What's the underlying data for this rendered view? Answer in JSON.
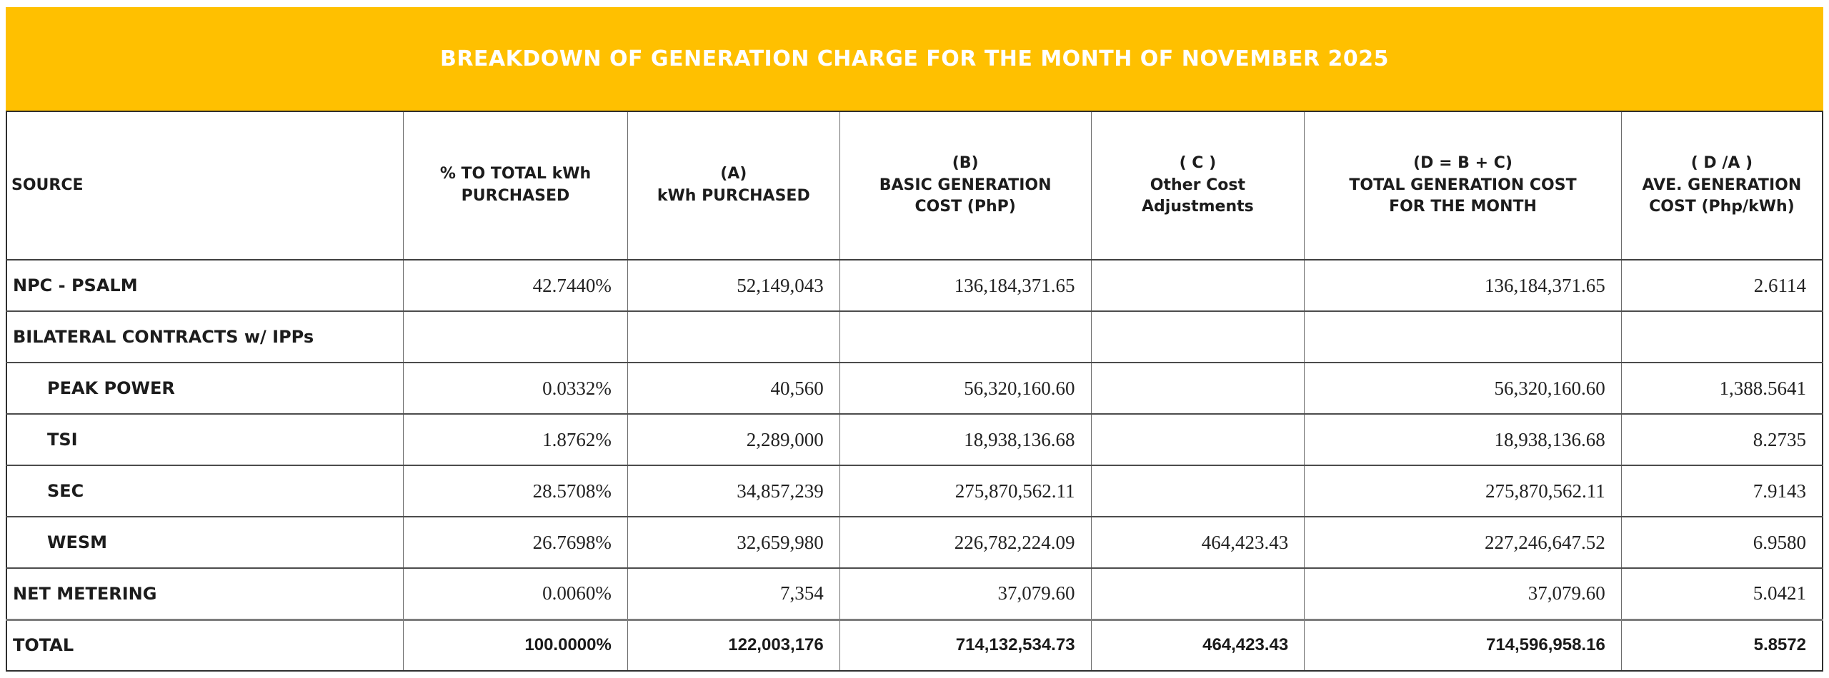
{
  "title": "BREAKDOWN OF GENERATION CHARGE FOR THE MONTH OF NOVEMBER 2025",
  "colors": {
    "banner_background": "#FFC000",
    "banner_text": "#FFFFFF",
    "table_text": "#1C1C1C",
    "border": "#4C4C4C"
  },
  "table": {
    "headers": {
      "source": "SOURCE",
      "pct": "% TO TOTAL kWh\nPURCHASED",
      "kwh": "(A)\nkWh PURCHASED",
      "basic": "(B)\nBASIC GENERATION\nCOST (PhP)",
      "other": "( C )\nOther Cost\nAdjustments",
      "total": "(D = B + C)\nTOTAL GENERATION COST\nFOR THE MONTH",
      "ave": "( D /A )\nAVE. GENERATION\nCOST (Php/kWh)"
    },
    "rows": [
      {
        "source": "NPC - PSALM",
        "pct": "42.7440%",
        "kwh": "52,149,043",
        "basic": "136,184,371.65",
        "other": "",
        "total": "136,184,371.65",
        "ave": "2.6114"
      },
      {
        "source": "BILATERAL CONTRACTS w/ IPPs",
        "pct": "",
        "kwh": "",
        "basic": "",
        "other": "",
        "total": "",
        "ave": ""
      },
      {
        "source": "PEAK POWER",
        "pct": "0.0332%",
        "kwh": "40,560",
        "basic": "56,320,160.60",
        "other": "",
        "total": "56,320,160.60",
        "ave": "1,388.5641"
      },
      {
        "source": "TSI",
        "pct": "1.8762%",
        "kwh": "2,289,000",
        "basic": "18,938,136.68",
        "other": "",
        "total": "18,938,136.68",
        "ave": "8.2735"
      },
      {
        "source": "SEC",
        "pct": "28.5708%",
        "kwh": "34,857,239",
        "basic": "275,870,562.11",
        "other": "",
        "total": "275,870,562.11",
        "ave": "7.9143"
      },
      {
        "source": "WESM",
        "pct": "26.7698%",
        "kwh": "32,659,980",
        "basic": "226,782,224.09",
        "other": "464,423.43",
        "total": "227,246,647.52",
        "ave": "6.9580"
      },
      {
        "source": "NET METERING",
        "pct": "0.0060%",
        "kwh": "7,354",
        "basic": "37,079.60",
        "other": "",
        "total": "37,079.60",
        "ave": "5.0421"
      },
      {
        "source": "TOTAL",
        "pct": "100.0000%",
        "kwh": "122,003,176",
        "basic": "714,132,534.73",
        "other": "464,423.43",
        "total": "714,596,958.16",
        "ave": "5.8572"
      }
    ]
  }
}
